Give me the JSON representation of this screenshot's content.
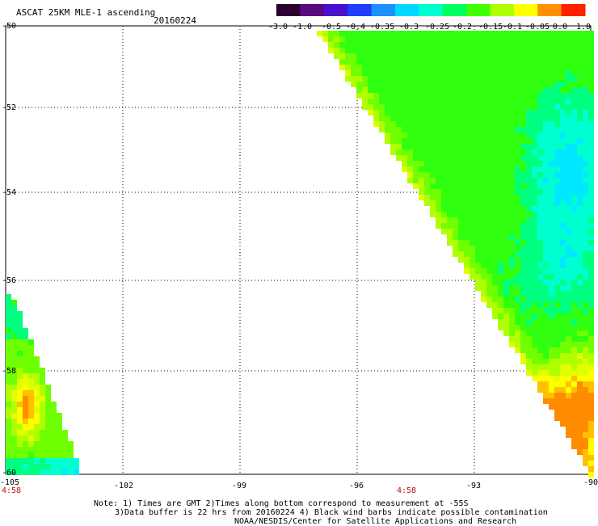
{
  "header": {
    "product": "ASCAT 25KM MLE-1 ascending",
    "date": "20160224"
  },
  "colorbar": {
    "labels": [
      "-3.0",
      "-1.0",
      "-0.5",
      "-0.4",
      "-0.35",
      "-0.3",
      "-0.25",
      "-0.2",
      "-0.15",
      "-0.1",
      "-0.05",
      "0.0",
      "1.0"
    ],
    "colors": [
      "#2a0030",
      "#5a0a80",
      "#4a10d0",
      "#1f3cff",
      "#1e90ff",
      "#00d8ff",
      "#00ffd0",
      "#00ff60",
      "#40ff00",
      "#b0ff00",
      "#ffff00",
      "#ff9000",
      "#ff2000"
    ]
  },
  "axes": {
    "lat_labels": [
      "-50",
      "-52",
      "-54",
      "-56",
      "-58",
      "-60"
    ],
    "lon_labels": [
      "-105",
      "-102",
      "-99",
      "-96",
      "-93",
      "-90"
    ]
  },
  "times": [
    "4:58",
    "4:58"
  ],
  "notes": [
    "Note: 1) Times are GMT 2)Times along bottom correspond to measurement at -55S",
    "3)Data buffer is 22 hrs from 20160224 4) Black wind barbs indicate possible contamination",
    "NOAA/NESDIS/Center for Satellite Applications and Research"
  ]
}
